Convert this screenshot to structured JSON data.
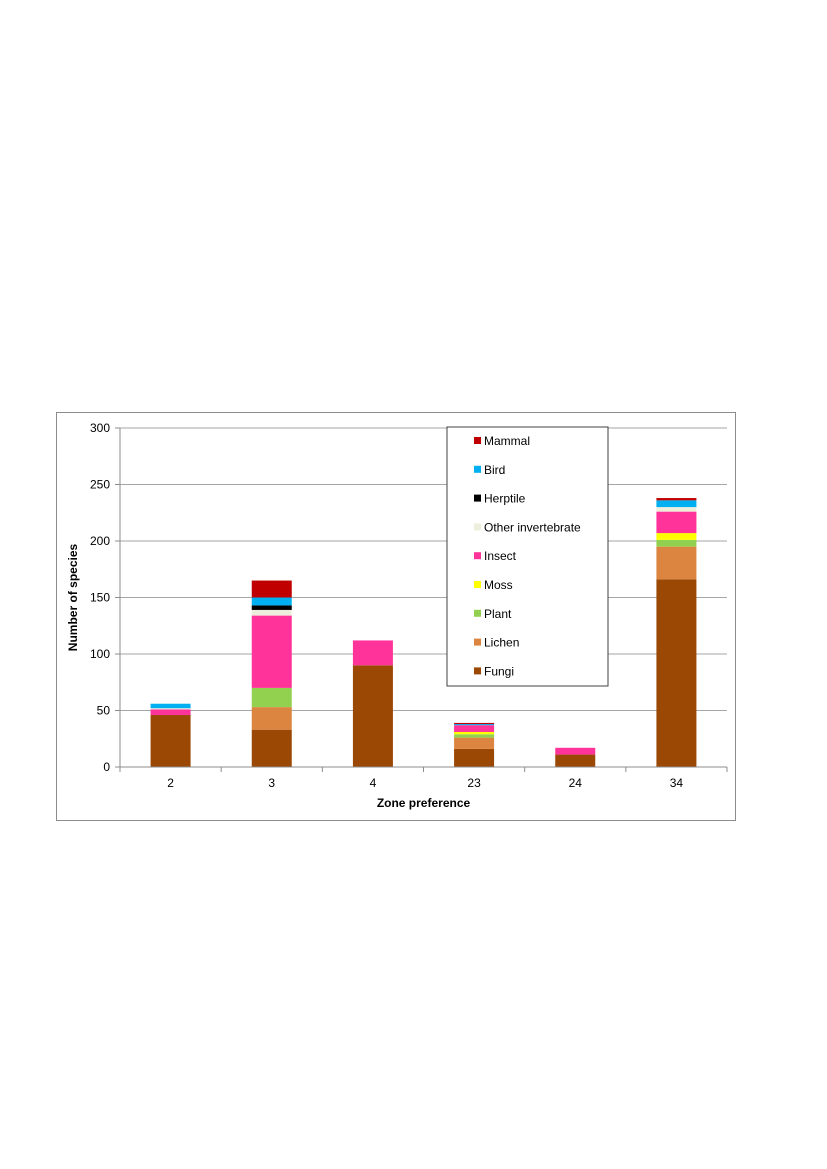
{
  "chart_data": {
    "type": "bar",
    "stacked": true,
    "xlabel": "Zone preference",
    "ylabel": "Number of species",
    "ylim": [
      0,
      300
    ],
    "yticks": [
      0,
      50,
      100,
      150,
      200,
      250,
      300
    ],
    "grid": true,
    "legend_position": "top-right",
    "categories": [
      "2",
      "3",
      "4",
      "23",
      "24",
      "34"
    ],
    "series": [
      {
        "name": "Fungi",
        "color": "#9a4804",
        "values": [
          46,
          33,
          90,
          16,
          11,
          166
        ]
      },
      {
        "name": "Lichen",
        "color": "#dc8540",
        "values": [
          0,
          20,
          0,
          10,
          0,
          29
        ]
      },
      {
        "name": "Plant",
        "color": "#92d050",
        "values": [
          0,
          17,
          0,
          3,
          0,
          6
        ]
      },
      {
        "name": "Moss",
        "color": "#ffff00",
        "values": [
          0,
          0,
          0,
          2,
          0,
          6
        ]
      },
      {
        "name": "Insect",
        "color": "#ff3399",
        "values": [
          5,
          64,
          22,
          6,
          6,
          19
        ]
      },
      {
        "name": "Other invertebrate",
        "color": "#eeeedd",
        "values": [
          1,
          5,
          0,
          0,
          0,
          4
        ]
      },
      {
        "name": "Herptile",
        "color": "#000000",
        "values": [
          0,
          4,
          0,
          0,
          0,
          0
        ]
      },
      {
        "name": "Bird",
        "color": "#00b0f0",
        "values": [
          4,
          7,
          0,
          1,
          0,
          6
        ]
      },
      {
        "name": "Mammal",
        "color": "#c00000",
        "values": [
          0,
          15,
          0,
          1,
          0,
          2
        ]
      }
    ]
  }
}
